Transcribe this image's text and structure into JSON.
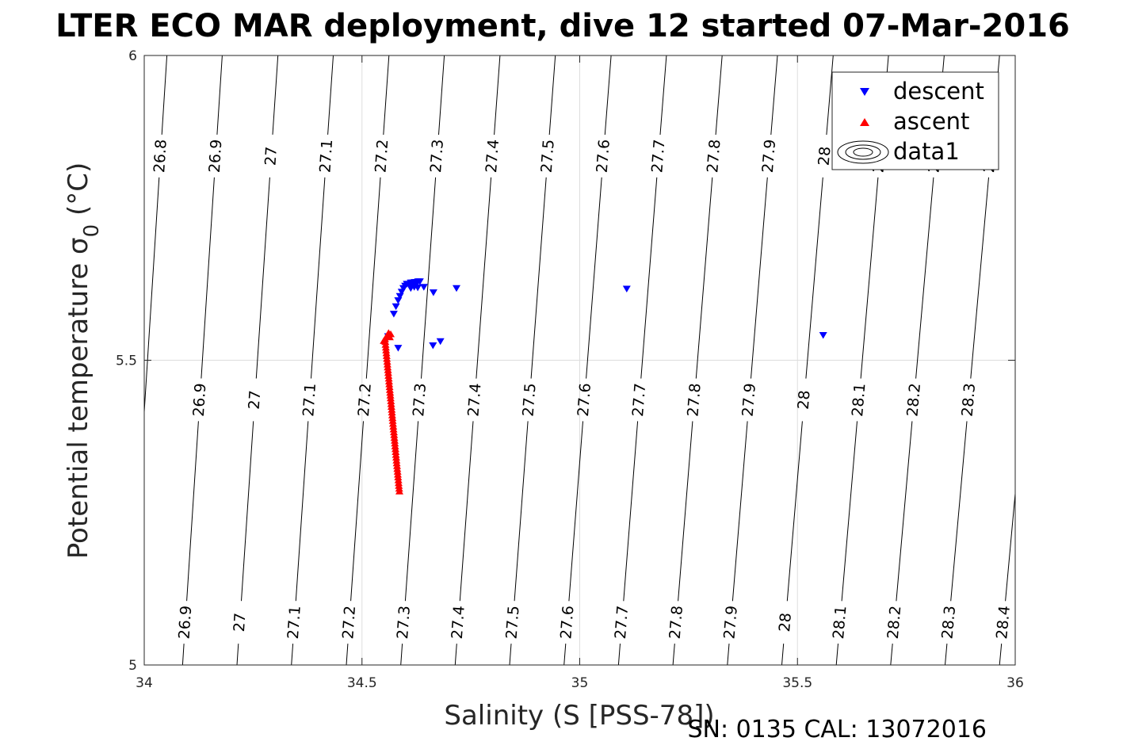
{
  "colors": {
    "descent": "#0000ff",
    "ascent": "#ff0000",
    "contour": "#000000",
    "grid": "#dddddd",
    "axis": "#262626"
  },
  "footer": "SN: 0135  CAL: 13072016",
  "chart_data": {
    "type": "scatter",
    "title": "LTER ECO MAR deployment, dive 12 started 07-Mar-2016",
    "xlabel": "Salinity (S [PSS-78])",
    "ylabel": "Potential temperature σ 0 (°C)",
    "ylabel_main": "Potential temperature ",
    "ylabel_sigma": "σ",
    "ylabel_sub": "0",
    "ylabel_unit": " (°C)",
    "xlim": [
      34,
      36
    ],
    "ylim": [
      5,
      6
    ],
    "xticks": [
      34,
      34.5,
      35,
      35.5,
      36
    ],
    "yticks": [
      5,
      5.5,
      6
    ],
    "xtick_labels": [
      "34",
      "34.5",
      "35",
      "35.5",
      "36"
    ],
    "ytick_labels": [
      "5",
      "5.5",
      "6"
    ],
    "grid": true,
    "legend_position": "top-right",
    "legend": [
      "descent",
      "ascent",
      "data1"
    ],
    "contour_levels": [
      "26.8",
      "26.9",
      "27",
      "27.1",
      "27.2",
      "27.3",
      "27.4",
      "27.5",
      "27.6",
      "27.7",
      "27.8",
      "27.9",
      "28",
      "28.1",
      "28.2",
      "28.3",
      "28.4"
    ],
    "contours": [
      {
        "level": 26.8,
        "x_at_T5": 33.963,
        "x_at_T6": 34.052
      },
      {
        "level": 26.9,
        "x_at_T5": 34.088,
        "x_at_T6": 34.179
      },
      {
        "level": 27.0,
        "x_at_T5": 34.213,
        "x_at_T6": 34.307
      },
      {
        "level": 27.1,
        "x_at_T5": 34.338,
        "x_at_T6": 34.434
      },
      {
        "level": 27.2,
        "x_at_T5": 34.464,
        "x_at_T6": 34.562
      },
      {
        "level": 27.3,
        "x_at_T5": 34.589,
        "x_at_T6": 34.689
      },
      {
        "level": 27.4,
        "x_at_T5": 34.714,
        "x_at_T6": 34.817
      },
      {
        "level": 27.5,
        "x_at_T5": 34.839,
        "x_at_T6": 34.944
      },
      {
        "level": 27.6,
        "x_at_T5": 34.964,
        "x_at_T6": 35.072
      },
      {
        "level": 27.7,
        "x_at_T5": 35.089,
        "x_at_T6": 35.199
      },
      {
        "level": 27.8,
        "x_at_T5": 35.214,
        "x_at_T6": 35.327
      },
      {
        "level": 27.9,
        "x_at_T5": 35.339,
        "x_at_T6": 35.454
      },
      {
        "level": 28.0,
        "x_at_T5": 35.464,
        "x_at_T6": 35.582
      },
      {
        "level": 28.1,
        "x_at_T5": 35.589,
        "x_at_T6": 35.709
      },
      {
        "level": 28.2,
        "x_at_T5": 35.714,
        "x_at_T6": 35.837
      },
      {
        "level": 28.3,
        "x_at_T5": 35.839,
        "x_at_T6": 35.964
      },
      {
        "level": 28.4,
        "x_at_T5": 35.964,
        "x_at_T6": 36.092
      }
    ],
    "series": [
      {
        "name": "descent",
        "marker": "triangle-down",
        "color": "#0000ff",
        "points": [
          [
            34.603,
            5.625
          ],
          [
            34.608,
            5.625
          ],
          [
            34.612,
            5.627
          ],
          [
            34.616,
            5.627
          ],
          [
            34.621,
            5.628
          ],
          [
            34.625,
            5.628
          ],
          [
            34.629,
            5.629
          ],
          [
            34.633,
            5.629
          ],
          [
            34.599,
            5.622
          ],
          [
            34.595,
            5.618
          ],
          [
            34.591,
            5.612
          ],
          [
            34.587,
            5.605
          ],
          [
            34.583,
            5.598
          ],
          [
            34.578,
            5.588
          ],
          [
            34.573,
            5.576
          ],
          [
            34.612,
            5.618
          ],
          [
            34.62,
            5.62
          ],
          [
            34.628,
            5.619
          ],
          [
            34.642,
            5.62
          ],
          [
            34.664,
            5.611
          ],
          [
            34.717,
            5.618
          ],
          [
            35.108,
            5.617
          ],
          [
            34.56,
            5.539
          ],
          [
            34.583,
            5.52
          ],
          [
            34.663,
            5.524
          ],
          [
            34.68,
            5.531
          ],
          [
            35.559,
            5.541
          ]
        ]
      },
      {
        "name": "ascent",
        "marker": "triangle-up",
        "color": "#ff0000",
        "path": {
          "start": [
            34.553,
            5.535
          ],
          "end": [
            34.586,
            5.285
          ],
          "count": 55
        },
        "extra_points": [
          [
            34.561,
            5.545
          ],
          [
            34.566,
            5.543
          ],
          [
            34.557,
            5.54
          ],
          [
            34.55,
            5.532
          ],
          [
            34.564,
            5.538
          ]
        ]
      }
    ]
  }
}
